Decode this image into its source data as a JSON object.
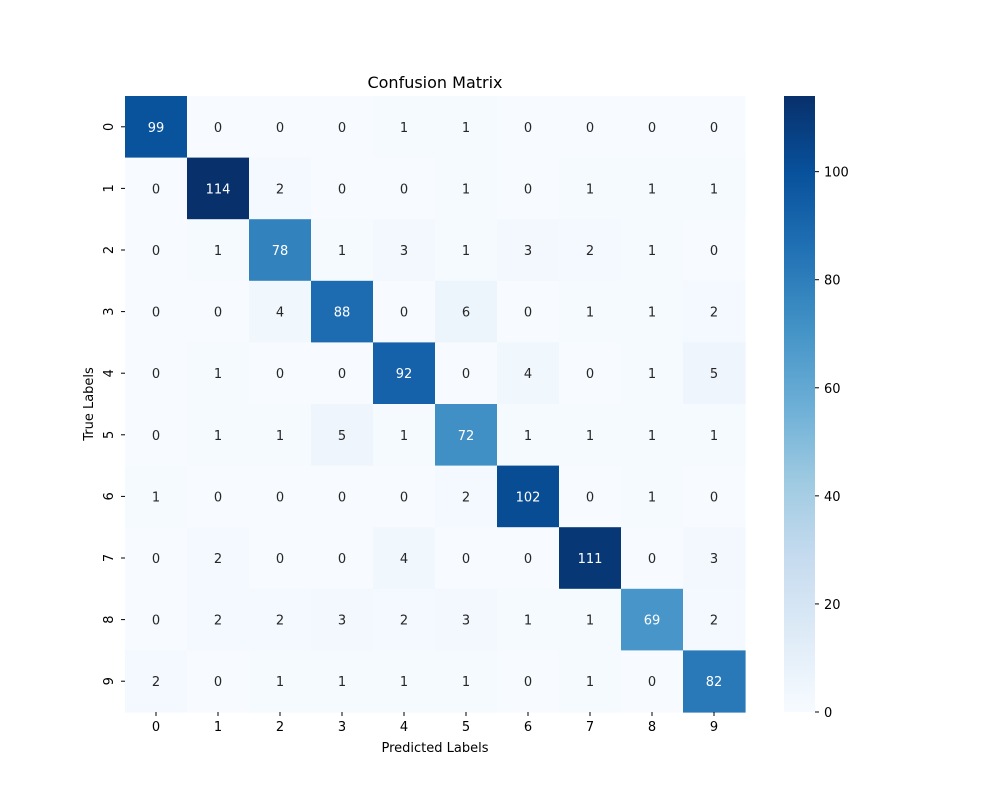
{
  "chart_data": {
    "type": "heatmap",
    "title": "Confusion Matrix",
    "xlabel": "Predicted Labels",
    "ylabel": "True Labels",
    "x_categories": [
      "0",
      "1",
      "2",
      "3",
      "4",
      "5",
      "6",
      "7",
      "8",
      "9"
    ],
    "y_categories": [
      "0",
      "1",
      "2",
      "3",
      "4",
      "5",
      "6",
      "7",
      "8",
      "9"
    ],
    "matrix": [
      [
        99,
        0,
        0,
        0,
        1,
        1,
        0,
        0,
        0,
        0
      ],
      [
        0,
        114,
        2,
        0,
        0,
        1,
        0,
        1,
        1,
        1
      ],
      [
        0,
        1,
        78,
        1,
        3,
        1,
        3,
        2,
        1,
        0
      ],
      [
        0,
        0,
        4,
        88,
        0,
        6,
        0,
        1,
        1,
        2
      ],
      [
        0,
        1,
        0,
        0,
        92,
        0,
        4,
        0,
        1,
        5
      ],
      [
        0,
        1,
        1,
        5,
        1,
        72,
        1,
        1,
        1,
        1
      ],
      [
        1,
        0,
        0,
        0,
        0,
        2,
        102,
        0,
        1,
        0
      ],
      [
        0,
        2,
        0,
        0,
        4,
        0,
        0,
        111,
        0,
        3
      ],
      [
        0,
        2,
        2,
        3,
        2,
        3,
        1,
        1,
        69,
        2
      ],
      [
        2,
        0,
        1,
        1,
        1,
        1,
        0,
        1,
        0,
        82
      ]
    ],
    "colormap": "Blues",
    "colorbar": {
      "range": [
        0,
        114
      ],
      "ticks": [
        0,
        20,
        40,
        60,
        80,
        100
      ]
    },
    "annotations": true,
    "grid": false
  }
}
